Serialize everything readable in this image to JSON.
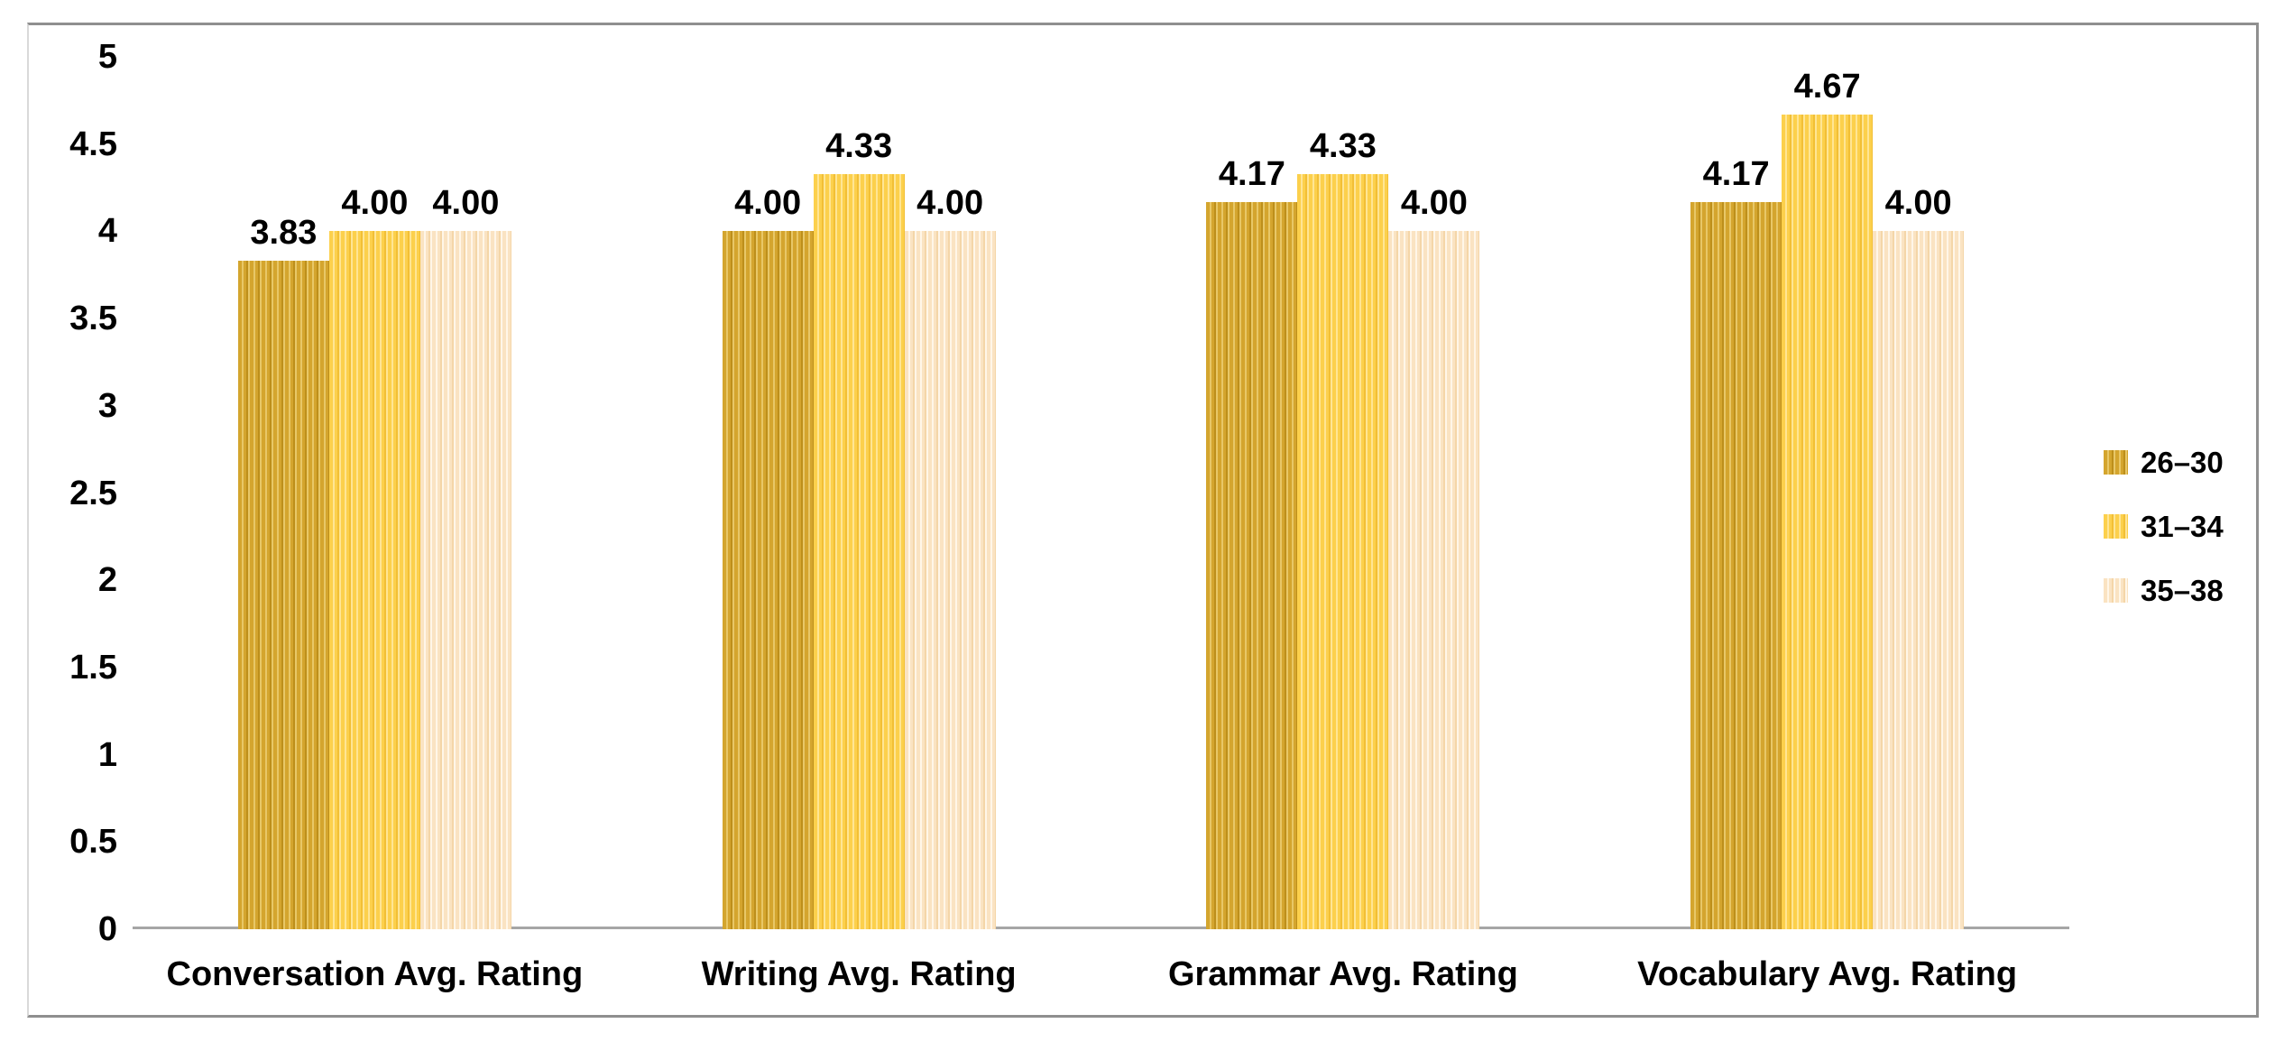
{
  "chart_data": {
    "type": "bar",
    "title": "",
    "xlabel": "",
    "ylabel": "",
    "categories": [
      "Conversation Avg. Rating",
      "Writing Avg. Rating",
      "Grammar Avg. Rating",
      "Vocabulary Avg. Rating"
    ],
    "series": [
      {
        "name": "26–30",
        "values": [
          3.83,
          4.0,
          4.17,
          4.17
        ],
        "labels": [
          "3.83",
          "4.00",
          "4.17",
          "4.17"
        ],
        "color_base": "#d4a52e",
        "color_light": "#e8c767",
        "color_dark": "#bd8f1b"
      },
      {
        "name": "31–34",
        "values": [
          4.0,
          4.33,
          4.33,
          4.67
        ],
        "labels": [
          "4.00",
          "4.33",
          "4.33",
          "4.67"
        ],
        "color_base": "#fcd04c",
        "color_light": "#ffe globalization",
        "color_dark": "#f2bf35"
      },
      {
        "name": "35–38",
        "values": [
          4.0,
          4.0,
          4.0,
          4.0
        ],
        "labels": [
          "4.00",
          "4.00",
          "4.00",
          "4.00"
        ],
        "color_base": "#fae3c2",
        "color_light": "#fff6e8",
        "color_dark": "#f4d6a8"
      }
    ],
    "y_axis": {
      "min": 0,
      "max": 5,
      "step": 0.5,
      "ticks": [
        "5",
        "4.5",
        "4",
        "3.5",
        "3",
        "2.5",
        "2",
        "1.5",
        "1",
        "0.5",
        "0"
      ]
    },
    "legend_position": "right",
    "grid": false,
    "bar_pattern": "thin-vertical-stripes"
  },
  "colors": {
    "background": "#ffffff",
    "frame_border": "#8f8f8f",
    "axis_line": "#a6a6a6",
    "text": "#000000"
  }
}
